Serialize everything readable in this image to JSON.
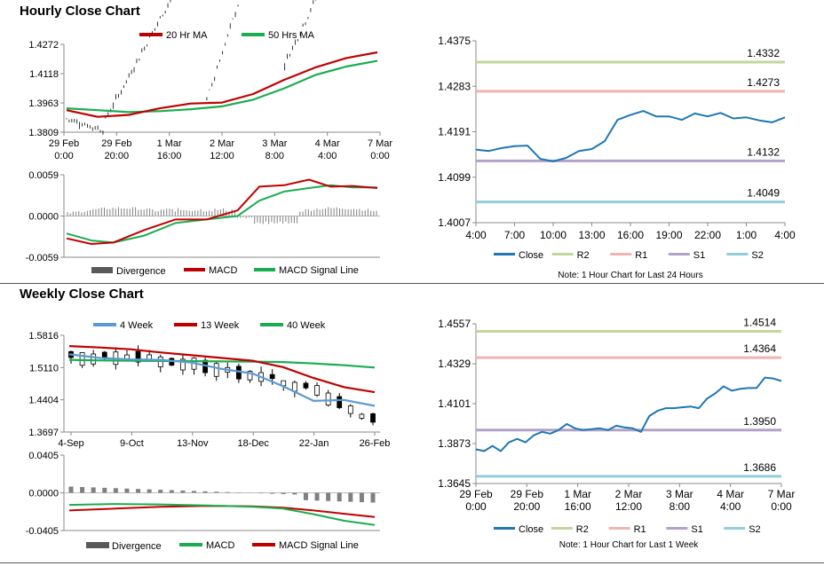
{
  "sections": {
    "hourly_title": "Hourly Close Chart",
    "weekly_title": "Weekly Close Chart"
  },
  "colors": {
    "ma_short": "#c00000",
    "ma_long": "#1aad4f",
    "close": "#1f77b4",
    "r2": "#c3d69b",
    "r1": "#f2b4b0",
    "s1": "#b3a2c7",
    "s2": "#92cddc",
    "weekly_ma4": "#5b9bd5",
    "divergence": "#808080"
  },
  "chart_data": [
    {
      "id": "hourly-price",
      "type": "candlestick",
      "legend": [
        "20 Hr MA",
        "50 Hrs MA"
      ],
      "y_ticks": [
        "1.4272",
        "1.4118",
        "1.3963",
        "1.3809"
      ],
      "x_ticks": [
        [
          "29 Feb",
          "0:00"
        ],
        [
          "29 Feb",
          "20:00"
        ],
        [
          "1 Mar",
          "16:00"
        ],
        [
          "2 Mar",
          "12:00"
        ],
        [
          "3 Mar",
          "8:00"
        ],
        [
          "4 Mar",
          "4:00"
        ],
        [
          "7 Mar",
          "0:00"
        ]
      ],
      "ylim": [
        1.3809,
        1.4272
      ]
    },
    {
      "id": "hourly-macd",
      "type": "bar+line",
      "legend": [
        "Divergence",
        "MACD",
        "MACD Signal Line"
      ],
      "y_ticks": [
        "0.0059",
        "0.0000",
        "-0.0059"
      ],
      "ylim": [
        -0.0059,
        0.0059
      ]
    },
    {
      "id": "hourly-close",
      "type": "line",
      "legend": [
        "Close",
        "R2",
        "R1",
        "S1",
        "S2"
      ],
      "y_ticks": [
        "1.4375",
        "1.4283",
        "1.4191",
        "1.4099",
        "1.4007"
      ],
      "x_ticks": [
        "4:00",
        "7:00",
        "10:00",
        "13:00",
        "16:00",
        "19:00",
        "22:00",
        "1:00",
        "4:00"
      ],
      "ylim": [
        1.4007,
        1.4375
      ],
      "levels": [
        {
          "name": "R2",
          "value": 1.4332,
          "label": "1.4332"
        },
        {
          "name": "R1",
          "value": 1.4273,
          "label": "1.4273"
        },
        {
          "name": "S1",
          "value": 1.4132,
          "label": "1.4132"
        },
        {
          "name": "S2",
          "value": 1.4049,
          "label": "1.4049"
        }
      ],
      "close": [
        1.4155,
        1.4152,
        1.4158,
        1.4162,
        1.4163,
        1.4136,
        1.4131,
        1.4138,
        1.4152,
        1.4156,
        1.4172,
        1.4215,
        1.4225,
        1.4233,
        1.4222,
        1.4222,
        1.4215,
        1.4228,
        1.4222,
        1.4229,
        1.4218,
        1.422,
        1.4214,
        1.421,
        1.422
      ],
      "note": "Note: 1 Hour Chart for Last 24 Hours"
    },
    {
      "id": "weekly-price",
      "type": "candlestick",
      "legend": [
        "4 Week",
        "13 Week",
        "40 Week"
      ],
      "y_ticks": [
        "1.5816",
        "1.5110",
        "1.4404",
        "1.3697"
      ],
      "x_ticks": [
        "4-Sep",
        "9-Oct",
        "13-Nov",
        "18-Dec",
        "22-Jan",
        "26-Feb"
      ],
      "ylim": [
        1.3697,
        1.5816
      ]
    },
    {
      "id": "weekly-macd",
      "type": "bar+line",
      "legend": [
        "Divergence",
        "MACD",
        "MACD Signal Line"
      ],
      "y_ticks": [
        "0.0405",
        "0.0000",
        "-0.0405"
      ],
      "ylim": [
        -0.0405,
        0.0405
      ]
    },
    {
      "id": "weekly-close",
      "type": "line",
      "legend": [
        "Close",
        "R2",
        "R1",
        "S1",
        "S2"
      ],
      "y_ticks": [
        "1.4557",
        "1.4329",
        "1.4101",
        "1.3873",
        "1.3645"
      ],
      "x_ticks": [
        [
          "29 Feb",
          "0:00"
        ],
        [
          "29 Feb",
          "20:00"
        ],
        [
          "1 Mar",
          "16:00"
        ],
        [
          "2 Mar",
          "12:00"
        ],
        [
          "3 Mar",
          "8:00"
        ],
        [
          "4 Mar",
          "4:00"
        ],
        [
          "7 Mar",
          "0:00"
        ]
      ],
      "ylim": [
        1.3645,
        1.4557
      ],
      "levels": [
        {
          "name": "R2",
          "value": 1.4514,
          "label": "1.4514"
        },
        {
          "name": "R1",
          "value": 1.4364,
          "label": "1.4364"
        },
        {
          "name": "S1",
          "value": 1.395,
          "label": "1.3950"
        },
        {
          "name": "S2",
          "value": 1.3686,
          "label": "1.3686"
        }
      ],
      "close": [
        1.384,
        1.383,
        1.386,
        1.383,
        1.388,
        1.39,
        1.388,
        1.392,
        1.394,
        1.393,
        1.395,
        1.3985,
        1.396,
        1.395,
        1.3955,
        1.396,
        1.395,
        1.3975,
        1.3965,
        1.396,
        1.394,
        1.403,
        1.406,
        1.4075,
        1.4075,
        1.408,
        1.4085,
        1.4075,
        1.413,
        1.416,
        1.42,
        1.4175,
        1.4185,
        1.419,
        1.419,
        1.425,
        1.4245,
        1.423
      ],
      "note": "Note: 1 Hour Chart for Last 1 Week"
    }
  ]
}
